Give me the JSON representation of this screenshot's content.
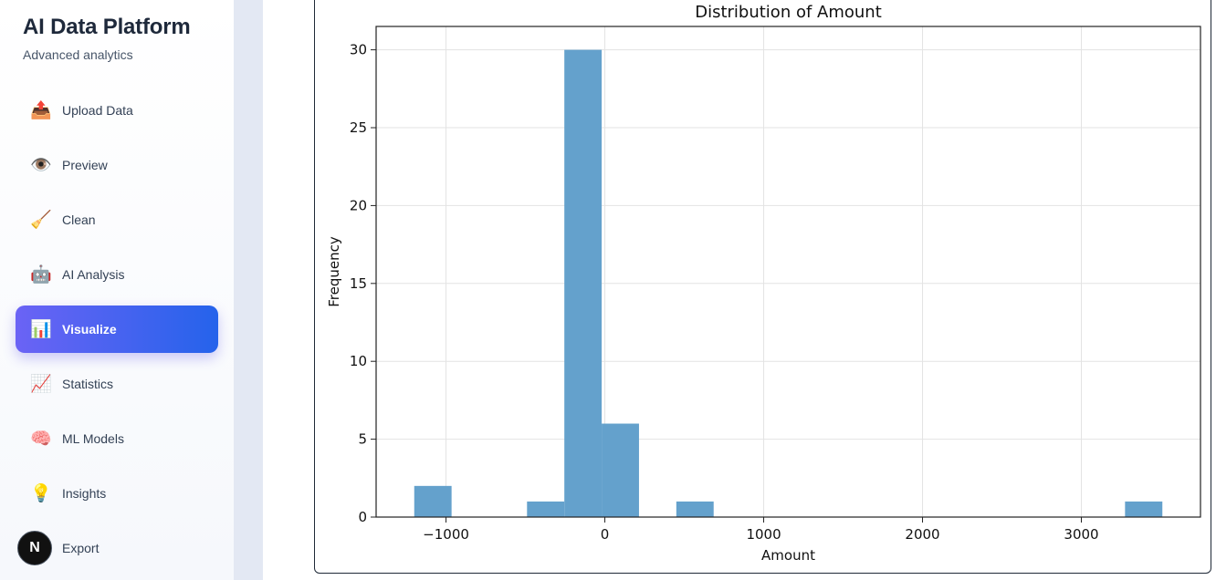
{
  "sidebar": {
    "title": "AI Data Platform",
    "subtitle": "Advanced analytics",
    "items": [
      {
        "label": "Upload Data",
        "icon": "📤",
        "icon_name": "outbox-tray-icon"
      },
      {
        "label": "Preview",
        "icon": "👁️",
        "icon_name": "eye-icon"
      },
      {
        "label": "Clean",
        "icon": "🧹",
        "icon_name": "broom-icon"
      },
      {
        "label": "AI Analysis",
        "icon": "🤖",
        "icon_name": "robot-icon"
      },
      {
        "label": "Visualize",
        "icon": "📊",
        "icon_name": "bar-chart-icon",
        "active": true
      },
      {
        "label": "Statistics",
        "icon": "📈",
        "icon_name": "trend-chart-icon"
      },
      {
        "label": "ML Models",
        "icon": "🧠",
        "icon_name": "brain-icon"
      },
      {
        "label": "Insights",
        "icon": "💡",
        "icon_name": "light-bulb-icon"
      },
      {
        "label": "Export",
        "icon": "",
        "icon_name": "export-icon"
      }
    ],
    "badge": "N"
  },
  "colors": {
    "accent_start": "#6b63f5",
    "accent_end": "#2563eb",
    "bar_fill": "#64a1cc",
    "grid": "#e3e3e3"
  },
  "chart_data": {
    "type": "bar",
    "title": "Distribution of Amount",
    "xlabel": "Amount",
    "ylabel": "Frequency",
    "xlim": [
      -1440,
      3750
    ],
    "ylim": [
      0,
      31.5
    ],
    "xticks": [
      -1000,
      0,
      1000,
      2000,
      3000
    ],
    "xtick_labels": [
      "−1000",
      "0",
      "1000",
      "2000",
      "3000"
    ],
    "yticks": [
      0,
      5,
      10,
      15,
      20,
      25,
      30
    ],
    "ytick_labels": [
      "0",
      "5",
      "10",
      "15",
      "20",
      "25",
      "30"
    ],
    "grid": true,
    "bins": [
      {
        "x0": -1200,
        "x1": -965,
        "count": 2
      },
      {
        "x0": -490,
        "x1": -255,
        "count": 1
      },
      {
        "x0": -255,
        "x1": -20,
        "count": 30
      },
      {
        "x0": -20,
        "x1": 215,
        "count": 6
      },
      {
        "x0": 450,
        "x1": 685,
        "count": 1
      },
      {
        "x0": 3275,
        "x1": 3510,
        "count": 1
      }
    ]
  }
}
